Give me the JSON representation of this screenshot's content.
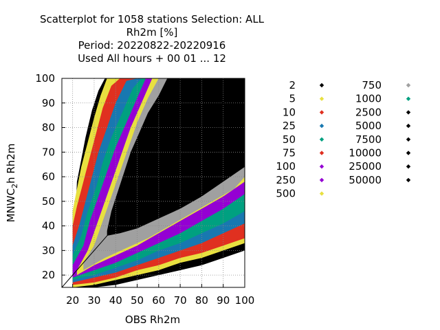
{
  "chart_data": {
    "type": "scatter",
    "title_lines": [
      "Scatterplot for 1058 stations Selection: ALL",
      "Rh2m [%]",
      "Period: 20220822-20220916",
      "Used  All hours  + 00 01 ... 12"
    ],
    "xlabel": "OBS Rh2m",
    "ylabel_main": "MNWC",
    "ylabel_sub": "2",
    "ylabel_end": "h Rh2m",
    "xlim": [
      15,
      100
    ],
    "ylim": [
      15,
      100
    ],
    "x_ticks": [
      20,
      30,
      40,
      50,
      60,
      70,
      80,
      90,
      100
    ],
    "y_ticks": [
      20,
      30,
      40,
      50,
      60,
      70,
      80,
      90,
      100
    ],
    "grid": true,
    "legend_position": "right",
    "legend": [
      {
        "label": "2",
        "color": "#000000"
      },
      {
        "label": "5",
        "color": "#e8e040"
      },
      {
        "label": "10",
        "color": "#e03020"
      },
      {
        "label": "25",
        "color": "#1878b0"
      },
      {
        "label": "50",
        "color": "#00a080"
      },
      {
        "label": "75",
        "color": "#e03020"
      },
      {
        "label": "100",
        "color": "#9400d3"
      },
      {
        "label": "250",
        "color": "#9400d3"
      },
      {
        "label": "500",
        "color": "#e8e040"
      },
      {
        "label": "750",
        "color": "#a0a0a0"
      },
      {
        "label": "1000",
        "color": "#00a080"
      },
      {
        "label": "2500",
        "color": "#000000"
      },
      {
        "label": "5000",
        "color": "#000000"
      },
      {
        "label": "7500",
        "color": "#000000"
      },
      {
        "label": "10000",
        "color": "#000000"
      },
      {
        "label": "25000",
        "color": "#000000"
      },
      {
        "label": "50000",
        "color": "#000000"
      }
    ],
    "density_bands": [
      {
        "name": "2",
        "color": "#000000",
        "upper": [
          [
            22,
            58
          ],
          [
            24,
            67
          ],
          [
            26,
            76
          ],
          [
            29,
            87
          ],
          [
            32,
            95
          ],
          [
            35,
            100
          ],
          [
            100,
            100
          ]
        ],
        "lower": [
          [
            20,
            14
          ],
          [
            30,
            15
          ],
          [
            40,
            16
          ],
          [
            50,
            18
          ],
          [
            60,
            20
          ],
          [
            70,
            22
          ],
          [
            80,
            24
          ],
          [
            90,
            27
          ],
          [
            100,
            30
          ]
        ]
      },
      {
        "name": "5",
        "color": "#e8e040",
        "upper": [
          [
            20,
            46
          ],
          [
            22,
            55
          ],
          [
            24,
            64
          ],
          [
            27,
            74
          ],
          [
            30,
            84
          ],
          [
            33,
            93
          ],
          [
            36,
            100
          ],
          [
            100,
            100
          ]
        ],
        "lower": [
          [
            20,
            15
          ],
          [
            30,
            16
          ],
          [
            40,
            18
          ],
          [
            50,
            20
          ],
          [
            60,
            22
          ],
          [
            70,
            25
          ],
          [
            80,
            27
          ],
          [
            90,
            30
          ],
          [
            100,
            33
          ]
        ]
      },
      {
        "name": "10",
        "color": "#e03020",
        "upper": [
          [
            20,
            40
          ],
          [
            22,
            48
          ],
          [
            25,
            58
          ],
          [
            28,
            68
          ],
          [
            31,
            78
          ],
          [
            34,
            88
          ],
          [
            38,
            97
          ],
          [
            42,
            100
          ],
          [
            100,
            100
          ]
        ],
        "lower": [
          [
            20,
            16
          ],
          [
            30,
            17
          ],
          [
            40,
            19
          ],
          [
            50,
            22
          ],
          [
            60,
            24
          ],
          [
            70,
            27
          ],
          [
            80,
            29
          ],
          [
            90,
            32
          ],
          [
            100,
            35
          ]
        ]
      },
      {
        "name": "25",
        "color": "#1878b0",
        "upper": [
          [
            20,
            32
          ],
          [
            23,
            40
          ],
          [
            26,
            50
          ],
          [
            29,
            60
          ],
          [
            32,
            70
          ],
          [
            36,
            80
          ],
          [
            40,
            90
          ],
          [
            45,
            99
          ],
          [
            50,
            100
          ],
          [
            100,
            100
          ]
        ],
        "lower": [
          [
            20,
            17
          ],
          [
            30,
            19
          ],
          [
            40,
            21
          ],
          [
            50,
            24
          ],
          [
            60,
            27
          ],
          [
            70,
            30
          ],
          [
            80,
            33
          ],
          [
            90,
            37
          ],
          [
            100,
            41
          ]
        ]
      },
      {
        "name": "50",
        "color": "#00a080",
        "upper": [
          [
            20,
            28
          ],
          [
            24,
            36
          ],
          [
            27,
            46
          ],
          [
            31,
            56
          ],
          [
            34,
            66
          ],
          [
            38,
            76
          ],
          [
            43,
            86
          ],
          [
            48,
            96
          ],
          [
            52,
            100
          ],
          [
            100,
            100
          ]
        ],
        "lower": [
          [
            20,
            18
          ],
          [
            30,
            20
          ],
          [
            40,
            23
          ],
          [
            50,
            26
          ],
          [
            60,
            30
          ],
          [
            70,
            33
          ],
          [
            80,
            37
          ],
          [
            90,
            41
          ],
          [
            100,
            46
          ]
        ]
      },
      {
        "name": "100",
        "color": "#9400d3",
        "upper": [
          [
            20,
            24
          ],
          [
            25,
            32
          ],
          [
            28,
            42
          ],
          [
            32,
            52
          ],
          [
            36,
            62
          ],
          [
            40,
            72
          ],
          [
            45,
            82
          ],
          [
            50,
            92
          ],
          [
            54,
            100
          ],
          [
            100,
            100
          ]
        ],
        "lower": [
          [
            20,
            19
          ],
          [
            30,
            22
          ],
          [
            40,
            25
          ],
          [
            50,
            29
          ],
          [
            60,
            33
          ],
          [
            70,
            37
          ],
          [
            80,
            42
          ],
          [
            90,
            47
          ],
          [
            100,
            53
          ]
        ]
      },
      {
        "name": "500",
        "color": "#e8e040",
        "upper": [
          [
            22,
            22
          ],
          [
            27,
            30
          ],
          [
            31,
            40
          ],
          [
            35,
            50
          ],
          [
            39,
            60
          ],
          [
            43,
            70
          ],
          [
            47,
            80
          ],
          [
            52,
            90
          ],
          [
            57,
            100
          ],
          [
            100,
            100
          ]
        ],
        "lower": [
          [
            22,
            20
          ],
          [
            30,
            24
          ],
          [
            40,
            28
          ],
          [
            50,
            32
          ],
          [
            60,
            37
          ],
          [
            70,
            42
          ],
          [
            80,
            47
          ],
          [
            90,
            52
          ],
          [
            100,
            58
          ]
        ]
      },
      {
        "name": "750",
        "color": "#a0a0a0",
        "upper": [
          [
            25,
            25
          ],
          [
            30,
            32
          ],
          [
            34,
            42
          ],
          [
            38,
            52
          ],
          [
            42,
            62
          ],
          [
            46,
            72
          ],
          [
            50,
            82
          ],
          [
            55,
            92
          ],
          [
            60,
            100
          ],
          [
            100,
            100
          ]
        ],
        "lower": [
          [
            25,
            22
          ],
          [
            35,
            27
          ],
          [
            45,
            31
          ],
          [
            55,
            35
          ],
          [
            65,
            40
          ],
          [
            75,
            45
          ],
          [
            85,
            50
          ],
          [
            95,
            55
          ],
          [
            100,
            60
          ]
        ]
      },
      {
        "name": "2500",
        "color": "#000000",
        "upper": [
          [
            36,
            38
          ],
          [
            38,
            46
          ],
          [
            41,
            54
          ],
          [
            44,
            62
          ],
          [
            47,
            70
          ],
          [
            51,
            78
          ],
          [
            55,
            86
          ],
          [
            60,
            93
          ],
          [
            64,
            100
          ],
          [
            100,
            100
          ]
        ],
        "lower": [
          [
            36,
            36
          ],
          [
            42,
            37
          ],
          [
            50,
            39
          ],
          [
            60,
            43
          ],
          [
            70,
            47
          ],
          [
            80,
            52
          ],
          [
            90,
            58
          ],
          [
            100,
            64
          ]
        ]
      }
    ]
  }
}
